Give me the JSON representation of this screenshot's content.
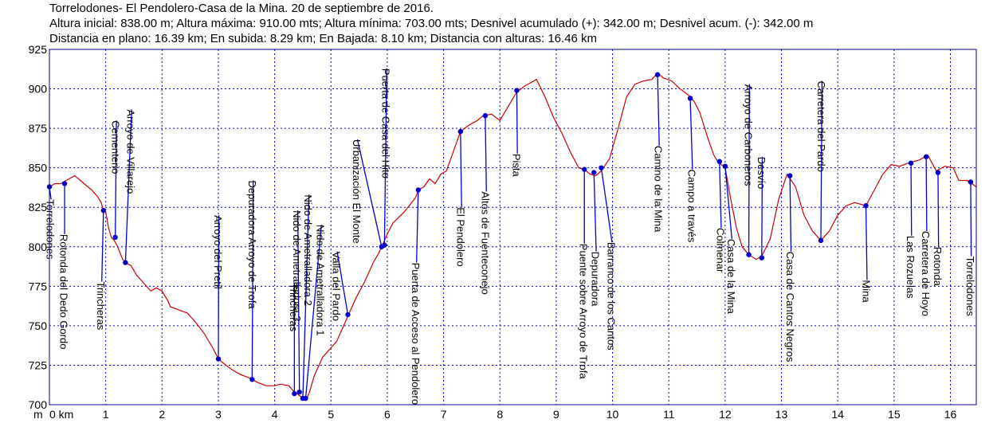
{
  "header": {
    "line1": "Torrelodones- El Pendolero-Casa de la Mina. 20  de septiembre de 2016.",
    "line2": "Altura inicial: 838.00 m; Altura máxima: 910.00 mts; Altura mínima: 703.00 mts; Desnivel acumulado (+): 342.00 m; Desnivel acum. (-): 342.00 m",
    "line3": "Distancia en plano: 16.39 km; En subida: 8.29 km; En Bajada: 8.10 km; Distancia con alturas: 16.46 km"
  },
  "colors": {
    "profile": "#cc0000",
    "waypoint": "#0000cc",
    "grid": "#0000cc",
    "frame": "#000080"
  },
  "chart_data": {
    "type": "line",
    "title": "Torrelodones- El Pendolero-Casa de la Mina. 20  de septiembre de 2016.",
    "xlabel": "km",
    "ylabel": "m",
    "xlim": [
      0,
      16.46
    ],
    "ylim": [
      700,
      925
    ],
    "x_ticks": [
      {
        "v": 0,
        "label": "0 km"
      },
      {
        "v": 1,
        "label": "1"
      },
      {
        "v": 2,
        "label": "2"
      },
      {
        "v": 3,
        "label": "3"
      },
      {
        "v": 4,
        "label": "4"
      },
      {
        "v": 5,
        "label": "5"
      },
      {
        "v": 6,
        "label": "6"
      },
      {
        "v": 7,
        "label": "7"
      },
      {
        "v": 8,
        "label": "8"
      },
      {
        "v": 9,
        "label": "9"
      },
      {
        "v": 10,
        "label": "10"
      },
      {
        "v": 11,
        "label": "11"
      },
      {
        "v": 12,
        "label": "12"
      },
      {
        "v": 13,
        "label": "13"
      },
      {
        "v": 14,
        "label": "14"
      },
      {
        "v": 15,
        "label": "15"
      },
      {
        "v": 16,
        "label": "16"
      }
    ],
    "y_ticks": [
      {
        "v": 700,
        "label": "700"
      },
      {
        "v": 725,
        "label": "725"
      },
      {
        "v": 750,
        "label": "750"
      },
      {
        "v": 775,
        "label": "775"
      },
      {
        "v": 800,
        "label": "800"
      },
      {
        "v": 825,
        "label": "825"
      },
      {
        "v": 850,
        "label": "850"
      },
      {
        "v": 875,
        "label": "875"
      },
      {
        "v": 900,
        "label": "900"
      },
      {
        "v": 925,
        "label": "925"
      }
    ],
    "axis_unit_label": "m",
    "grid": true,
    "series": [
      {
        "points": [
          [
            0,
            838
          ],
          [
            0.1,
            840
          ],
          [
            0.2,
            840
          ],
          [
            0.35,
            843
          ],
          [
            0.45,
            845
          ],
          [
            0.55,
            842
          ],
          [
            0.65,
            839
          ],
          [
            0.75,
            836
          ],
          [
            0.85,
            832
          ],
          [
            0.92,
            828
          ],
          [
            0.95,
            824
          ],
          [
            1.0,
            822
          ],
          [
            1.05,
            812
          ],
          [
            1.1,
            806
          ],
          [
            1.15,
            804
          ],
          [
            1.2,
            801
          ],
          [
            1.3,
            792
          ],
          [
            1.35,
            790
          ],
          [
            1.45,
            788
          ],
          [
            1.55,
            782
          ],
          [
            1.65,
            778
          ],
          [
            1.7,
            776
          ],
          [
            1.8,
            772
          ],
          [
            1.9,
            774
          ],
          [
            2.0,
            772
          ],
          [
            2.1,
            766
          ],
          [
            2.15,
            762
          ],
          [
            2.3,
            760
          ],
          [
            2.45,
            758
          ],
          [
            2.6,
            752
          ],
          [
            2.75,
            745
          ],
          [
            2.9,
            736
          ],
          [
            3.0,
            729
          ],
          [
            3.1,
            726
          ],
          [
            3.25,
            722
          ],
          [
            3.4,
            719
          ],
          [
            3.55,
            717
          ],
          [
            3.7,
            714
          ],
          [
            3.85,
            712
          ],
          [
            4.0,
            712
          ],
          [
            4.1,
            713
          ],
          [
            4.25,
            712
          ],
          [
            4.35,
            708
          ],
          [
            4.4,
            707
          ],
          [
            4.43,
            706
          ],
          [
            4.47,
            705
          ],
          [
            4.5,
            704
          ],
          [
            4.53,
            703
          ],
          [
            4.57,
            704
          ],
          [
            4.62,
            708
          ],
          [
            4.7,
            718
          ],
          [
            4.85,
            730
          ],
          [
            5.0,
            736
          ],
          [
            5.1,
            740
          ],
          [
            5.2,
            748
          ],
          [
            5.3,
            756
          ],
          [
            5.45,
            768
          ],
          [
            5.6,
            778
          ],
          [
            5.75,
            790
          ],
          [
            5.85,
            796
          ],
          [
            5.9,
            800
          ],
          [
            6.0,
            808
          ],
          [
            6.1,
            815
          ],
          [
            6.3,
            822
          ],
          [
            6.5,
            831
          ],
          [
            6.55,
            836
          ],
          [
            6.65,
            838
          ],
          [
            6.75,
            843
          ],
          [
            6.85,
            840
          ],
          [
            6.95,
            846
          ],
          [
            7.05,
            848
          ],
          [
            7.15,
            858
          ],
          [
            7.3,
            873
          ],
          [
            7.45,
            877
          ],
          [
            7.6,
            880
          ],
          [
            7.7,
            883
          ],
          [
            7.85,
            884
          ],
          [
            8.0,
            880
          ],
          [
            8.15,
            889
          ],
          [
            8.3,
            898
          ],
          [
            8.45,
            902
          ],
          [
            8.65,
            906
          ],
          [
            8.8,
            895
          ],
          [
            8.95,
            882
          ],
          [
            9.1,
            872
          ],
          [
            9.25,
            860
          ],
          [
            9.4,
            850
          ],
          [
            9.5,
            849
          ],
          [
            9.6,
            846
          ],
          [
            9.7,
            845
          ],
          [
            9.8,
            848
          ],
          [
            9.95,
            856
          ],
          [
            10.1,
            875
          ],
          [
            10.25,
            895
          ],
          [
            10.4,
            903
          ],
          [
            10.55,
            905
          ],
          [
            10.7,
            906
          ],
          [
            10.8,
            910
          ],
          [
            10.9,
            907
          ],
          [
            11.05,
            905
          ],
          [
            11.2,
            900
          ],
          [
            11.35,
            896
          ],
          [
            11.45,
            892
          ],
          [
            11.55,
            885
          ],
          [
            11.7,
            868
          ],
          [
            11.8,
            858
          ],
          [
            11.85,
            855
          ],
          [
            11.9,
            853
          ],
          [
            12.0,
            850
          ],
          [
            12.1,
            830
          ],
          [
            12.2,
            812
          ],
          [
            12.3,
            800
          ],
          [
            12.42,
            795
          ],
          [
            12.55,
            792
          ],
          [
            12.65,
            794
          ],
          [
            12.8,
            805
          ],
          [
            12.95,
            830
          ],
          [
            13.1,
            846
          ],
          [
            13.25,
            838
          ],
          [
            13.4,
            820
          ],
          [
            13.55,
            810
          ],
          [
            13.7,
            804
          ],
          [
            13.85,
            810
          ],
          [
            14.0,
            820
          ],
          [
            14.15,
            826
          ],
          [
            14.3,
            828
          ],
          [
            14.5,
            826
          ],
          [
            14.65,
            836
          ],
          [
            14.8,
            846
          ],
          [
            14.95,
            852
          ],
          [
            15.1,
            851
          ],
          [
            15.25,
            853
          ],
          [
            15.45,
            855
          ],
          [
            15.6,
            858
          ],
          [
            15.75,
            848
          ],
          [
            15.9,
            851
          ],
          [
            16.05,
            850
          ],
          [
            16.15,
            842
          ],
          [
            16.3,
            842
          ],
          [
            16.46,
            838
          ]
        ]
      }
    ],
    "waypoints": [
      {
        "name": "Torrelodones",
        "km": 0.0,
        "alt": 838,
        "label_km": 0.03,
        "label_top": 830
      },
      {
        "name": "Rotonda del Dedo Gordo",
        "km": 0.27,
        "alt": 840,
        "label_km": 0.27,
        "label_top": 808
      },
      {
        "name": "Trincheras",
        "km": 0.96,
        "alt": 823,
        "label_km": 0.93,
        "label_top": 778
      },
      {
        "name": "Cementerio",
        "km": 1.17,
        "alt": 806,
        "label_km": 1.19,
        "label_top": 880
      },
      {
        "name": "Arroyo de Villarejo",
        "km": 1.35,
        "alt": 790,
        "label_km": 1.46,
        "label_top": 887
      },
      {
        "name": "Arroyo del Pretil",
        "km": 3.0,
        "alt": 729,
        "label_km": 3.01,
        "label_top": 820
      },
      {
        "name": "Depuradora Arroyo de Trofa",
        "km": 3.6,
        "alt": 716,
        "label_km": 3.62,
        "label_top": 842
      },
      {
        "name": "Trincheras",
        "km": 4.35,
        "alt": 707,
        "label_km": 4.35,
        "label_top": 777
      },
      {
        "name": "Nido de Ametralladora 3",
        "km": 4.44,
        "alt": 708,
        "label_km": 4.41,
        "label_top": 823
      },
      {
        "name": "Nido de Ametralladora 2",
        "km": 4.5,
        "alt": 704,
        "label_km": 4.61,
        "label_top": 833
      },
      {
        "name": "Nido de Ametralladora 1",
        "km": 4.55,
        "alt": 704,
        "label_km": 4.83,
        "label_top": 814
      },
      {
        "name": "Valla del Pardo",
        "km": 5.3,
        "alt": 757,
        "label_km": 5.11,
        "label_top": 797
      },
      {
        "name": "Urbanización El Monte",
        "km": 5.9,
        "alt": 800,
        "label_km": 5.47,
        "label_top": 868
      },
      {
        "name": "Puerta de Casa del Hito",
        "km": 5.95,
        "alt": 801,
        "label_km": 5.99,
        "label_top": 913
      },
      {
        "name": "Puerta de Acceso al Pendolero",
        "km": 6.55,
        "alt": 836,
        "label_km": 6.52,
        "label_top": 790
      },
      {
        "name": "El Pendolero",
        "km": 7.3,
        "alt": 873,
        "label_km": 7.32,
        "label_top": 825
      },
      {
        "name": "Altos de Fuenteconejo",
        "km": 7.74,
        "alt": 883,
        "label_km": 7.76,
        "label_top": 835
      },
      {
        "name": "Pista",
        "km": 8.3,
        "alt": 899,
        "label_km": 8.31,
        "label_top": 859
      },
      {
        "name": "Puente sobre Arroyo de Trofa",
        "km": 9.5,
        "alt": 849,
        "label_km": 9.5,
        "label_top": 802
      },
      {
        "name": "Depuradora",
        "km": 9.67,
        "alt": 847,
        "label_km": 9.71,
        "label_top": 797
      },
      {
        "name": "Barranco de los Cantos",
        "km": 9.8,
        "alt": 850,
        "label_km": 9.99,
        "label_top": 803
      },
      {
        "name": "Camino de la Mina",
        "km": 10.8,
        "alt": 909,
        "label_km": 10.83,
        "label_top": 864
      },
      {
        "name": "Campo a través",
        "km": 11.38,
        "alt": 894,
        "label_km": 11.42,
        "label_top": 849
      },
      {
        "name": "Colmenar",
        "km": 11.9,
        "alt": 854,
        "label_km": 11.93,
        "label_top": 812
      },
      {
        "name": "Casa de la Mina",
        "km": 12.0,
        "alt": 851,
        "label_km": 12.12,
        "label_top": 805
      },
      {
        "name": "Arroyo de Carboneros",
        "km": 12.42,
        "alt": 795,
        "label_km": 12.43,
        "label_top": 903
      },
      {
        "name": "Desvío",
        "km": 12.65,
        "alt": 793,
        "label_km": 12.66,
        "label_top": 857
      },
      {
        "name": "Casa de Cantos Negros",
        "km": 13.15,
        "alt": 845,
        "label_km": 13.17,
        "label_top": 797
      },
      {
        "name": "Carretera del Pardo",
        "km": 13.7,
        "alt": 804,
        "label_km": 13.72,
        "label_top": 905
      },
      {
        "name": "Mina",
        "km": 14.5,
        "alt": 826,
        "label_km": 14.52,
        "label_top": 779
      },
      {
        "name": "Las Rozuelas",
        "km": 15.3,
        "alt": 853,
        "label_km": 15.31,
        "label_top": 807
      },
      {
        "name": "Carretera de Hoyo",
        "km": 15.57,
        "alt": 857,
        "label_km": 15.58,
        "label_top": 810
      },
      {
        "name": "Rotonda",
        "km": 15.78,
        "alt": 847,
        "label_km": 15.79,
        "label_top": 800
      },
      {
        "name": "Torrelodones",
        "km": 16.36,
        "alt": 841,
        "label_km": 16.37,
        "label_top": 794
      }
    ]
  }
}
